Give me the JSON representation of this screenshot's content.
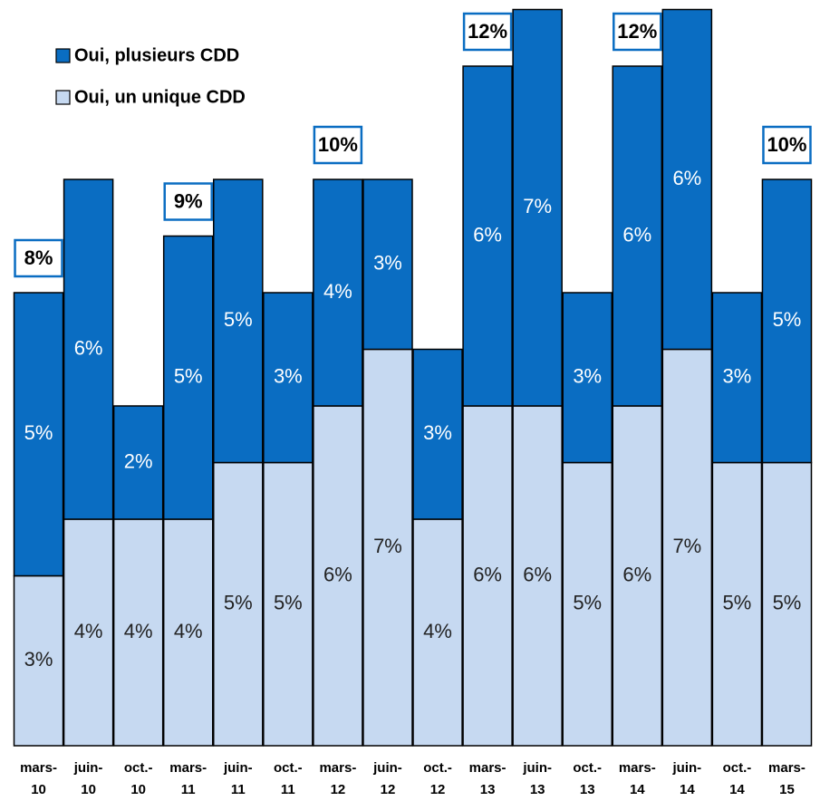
{
  "chart_data": {
    "type": "stacked_bar",
    "categories": [
      "mars-10",
      "juin-10",
      "oct.-10",
      "mars-11",
      "juin-11",
      "oct.-11",
      "mars-12",
      "juin-12",
      "oct.-12",
      "mars-13",
      "juin-13",
      "oct.-13",
      "mars-14",
      "juin-14",
      "oct.-14",
      "mars-15"
    ],
    "series": [
      {
        "name": "Oui, un unique CDD",
        "color": "#c6d9f1",
        "values": [
          3,
          4,
          4,
          4,
          5,
          5,
          6,
          7,
          4,
          6,
          6,
          5,
          6,
          7,
          5,
          5
        ],
        "value_labels": [
          "3%",
          "4%",
          "4%",
          "4%",
          "5%",
          "5%",
          "6%",
          "7%",
          "4%",
          "6%",
          "6%",
          "5%",
          "6%",
          "7%",
          "5%",
          "5%"
        ]
      },
      {
        "name": "Oui, plusieurs CDD",
        "color": "#0a6dc2",
        "values": [
          5,
          6,
          2,
          5,
          5,
          3,
          4,
          3,
          3,
          6,
          7,
          3,
          6,
          6,
          3,
          5
        ],
        "value_labels": [
          "5%",
          "6%",
          "2%",
          "5%",
          "5%",
          "3%",
          "4%",
          "3%",
          "3%",
          "6%",
          "7%",
          "3%",
          "6%",
          "6%",
          "3%",
          "5%"
        ]
      }
    ],
    "totals": {
      "values": [
        8,
        null,
        null,
        9,
        null,
        null,
        10,
        null,
        null,
        12,
        null,
        null,
        12,
        null,
        null,
        10
      ],
      "value_labels": [
        "8%",
        null,
        null,
        "9%",
        null,
        null,
        "10%",
        null,
        null,
        "12%",
        null,
        null,
        "12%",
        null,
        null,
        "10%"
      ]
    },
    "ylim": [
      0,
      13
    ]
  }
}
